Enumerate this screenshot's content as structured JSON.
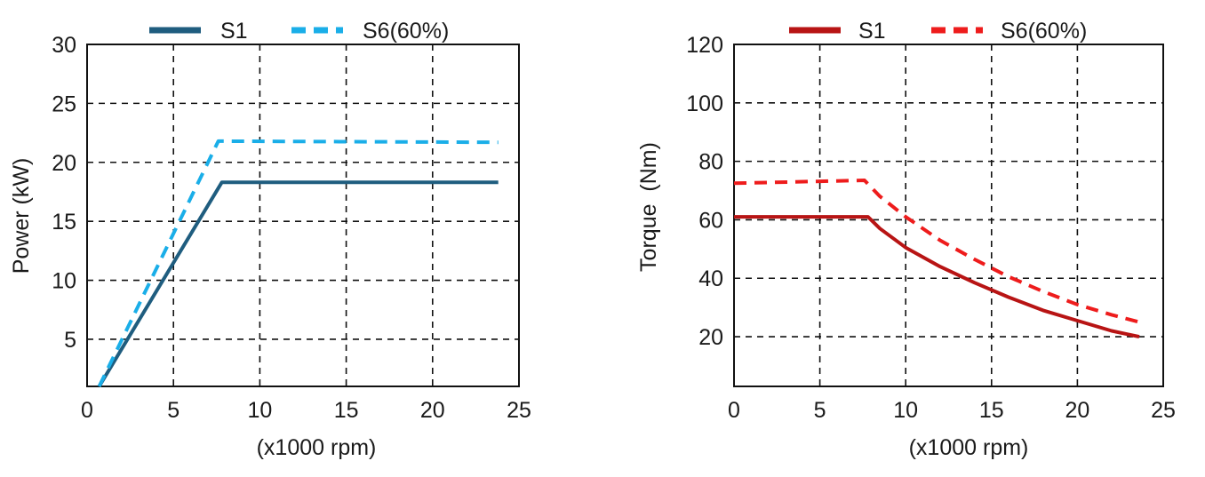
{
  "chart_data": [
    {
      "type": "line",
      "title": "",
      "xlabel": "(x1000 rpm)",
      "ylabel": "Power (kW)",
      "xlim": [
        0,
        25
      ],
      "ylim": [
        1,
        30
      ],
      "xticks": [
        0,
        5,
        10,
        15,
        20,
        25
      ],
      "yticks": [
        5,
        10,
        15,
        20,
        25,
        30
      ],
      "grid": true,
      "legend_position": "top",
      "series": [
        {
          "name": "S1",
          "style": "solid",
          "color": "#1f5d7f",
          "x": [
            0.7,
            7.8,
            23.8
          ],
          "y": [
            1.0,
            18.3,
            18.3
          ]
        },
        {
          "name": "S6(60%)",
          "style": "dashed",
          "color": "#1aaee8",
          "x": [
            0.7,
            7.6,
            23.8
          ],
          "y": [
            1.0,
            21.8,
            21.7
          ]
        }
      ]
    },
    {
      "type": "line",
      "title": "",
      "xlabel": "(x1000 rpm)",
      "ylabel": "Torque  (Nm)",
      "xlim": [
        0,
        25
      ],
      "ylim": [
        3,
        120
      ],
      "xticks": [
        0,
        5,
        10,
        15,
        20,
        25
      ],
      "yticks": [
        20,
        40,
        60,
        80,
        100,
        120
      ],
      "grid": true,
      "legend_position": "top",
      "series": [
        {
          "name": "S1",
          "style": "solid",
          "color": "#b81414",
          "x": [
            0,
            7.8,
            8.5,
            10,
            12,
            14,
            16,
            18,
            20,
            22,
            23.6
          ],
          "y": [
            61,
            61,
            57,
            50.5,
            44,
            38.5,
            33.5,
            29,
            25.5,
            22,
            20
          ]
        },
        {
          "name": "S6(60%)",
          "style": "dashed",
          "color": "#ee1c1c",
          "x": [
            0,
            7.6,
            8.5,
            10,
            12,
            14,
            16,
            18,
            20,
            22,
            23.6
          ],
          "y": [
            72.5,
            73.5,
            68,
            61,
            53,
            46.5,
            40.5,
            35.5,
            31,
            27.5,
            25
          ]
        }
      ]
    }
  ]
}
